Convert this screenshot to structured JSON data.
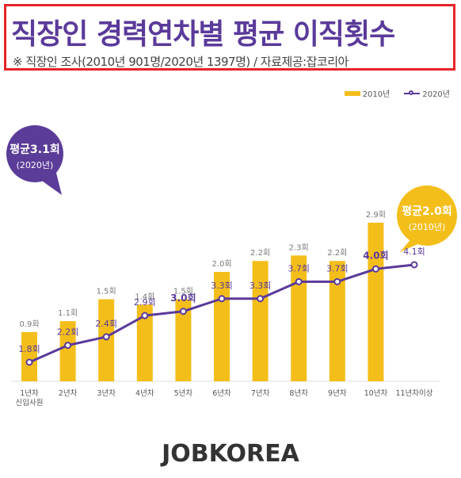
{
  "title": "직장인 경력연차별 평균 이직횟수",
  "subtitle": "※ 직장인 조사(2010년 901명/2020년 1397명) / 자료제공:잡코리아",
  "legend": {
    "bar_label": "2010년",
    "line_label": "2020년"
  },
  "bubbles": {
    "avg_2020": {
      "title": "평균3.1회",
      "sub": "(2020년)"
    },
    "avg_2010": {
      "title": "평균2.0회",
      "sub": "(2010년)"
    }
  },
  "logo": "JOBKOREA",
  "colors": {
    "bar": "#f4be1a",
    "line": "#5a3a9a",
    "title": "#5a3a9a",
    "border": "#e8232a",
    "bubble_purple": "#5b3c98",
    "bubble_yellow": "#f4be1a"
  },
  "chart_data": {
    "type": "bar",
    "categories": [
      "1년차\n신입사원",
      "2년차",
      "3년차",
      "4년차",
      "5년차",
      "6년차",
      "7년차",
      "8년차",
      "9년차",
      "10년차",
      "11년차이상"
    ],
    "series": [
      {
        "name": "2010년",
        "type": "bar",
        "values": [
          0.9,
          1.1,
          1.5,
          1.4,
          1.5,
          2.0,
          2.2,
          2.3,
          2.2,
          2.9,
          null
        ],
        "labels": [
          "0.9회",
          "1.1회",
          "1.5회",
          "1.4회",
          "1.5회",
          "2.0회",
          "2.2회",
          "2.3회",
          "2.2회",
          "2.9회",
          ""
        ]
      },
      {
        "name": "2020년",
        "type": "line",
        "values": [
          1.8,
          2.2,
          2.4,
          2.9,
          3.0,
          3.3,
          3.3,
          3.7,
          3.7,
          4.0,
          4.1
        ],
        "labels": [
          "1.8회",
          "2.2회",
          "2.4회",
          "2.9회",
          "3.0회",
          "3.3회",
          "3.3회",
          "3.7회",
          "3.7회",
          "4.0회",
          "4.1회"
        ]
      }
    ],
    "legend_position": "top-right",
    "grid": false
  }
}
